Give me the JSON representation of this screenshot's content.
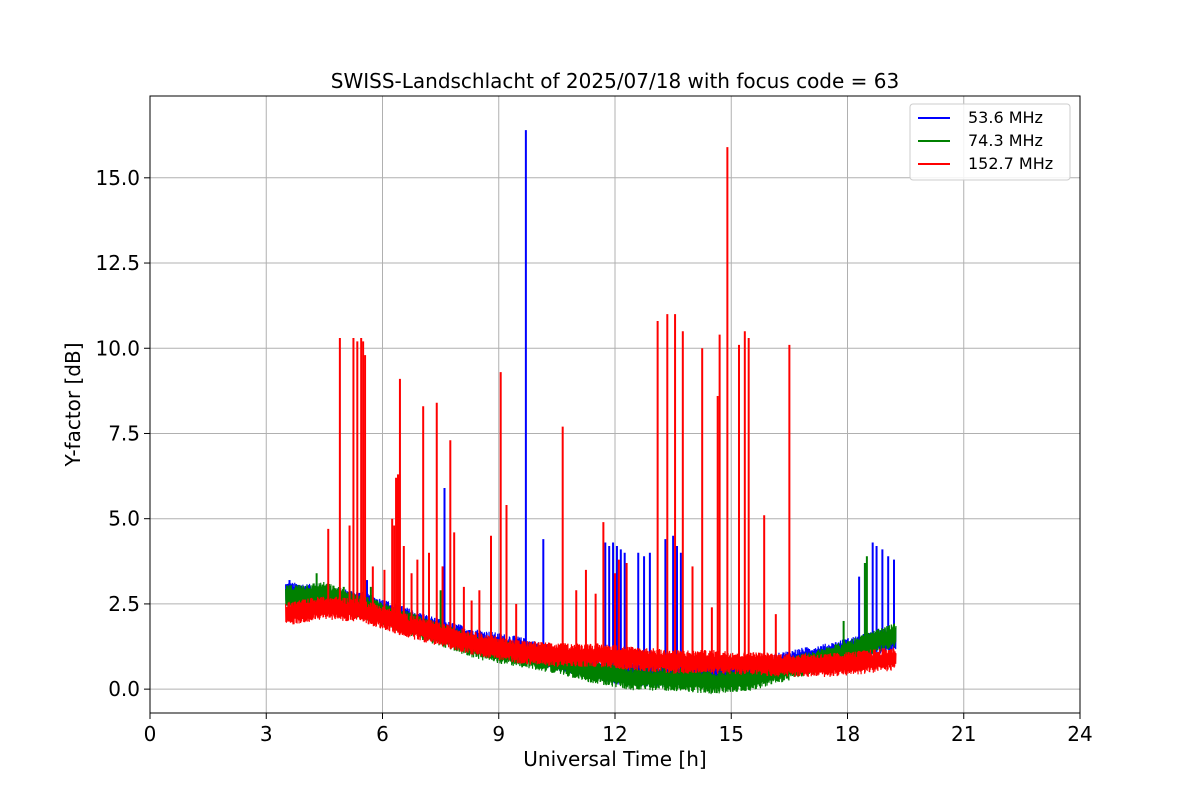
{
  "chart_data": {
    "type": "line",
    "title": "SWISS-Landschlacht of 2025/07/18 with focus code = 63",
    "xlabel": "Universal Time [h]",
    "ylabel": "Y-factor [dB]",
    "xlim": [
      0,
      24
    ],
    "ylim": [
      -0.7,
      17.4
    ],
    "x_ticks": [
      0,
      3,
      6,
      9,
      12,
      15,
      18,
      21,
      24
    ],
    "x_tick_labels": [
      "0",
      "3",
      "6",
      "9",
      "12",
      "15",
      "18",
      "21",
      "24"
    ],
    "y_ticks": [
      0.0,
      2.5,
      5.0,
      7.5,
      10.0,
      12.5,
      15.0
    ],
    "y_tick_labels": [
      "0.0",
      "2.5",
      "5.0",
      "7.5",
      "10.0",
      "12.5",
      "15.0"
    ],
    "grid": true,
    "legend_position": "top-right",
    "series": [
      {
        "name": " 53.6 MHz",
        "color": "#0000ff",
        "baseline": [
          [
            3.5,
            2.8
          ],
          [
            4.5,
            2.7
          ],
          [
            5.5,
            2.5
          ],
          [
            6.5,
            2.1
          ],
          [
            7.5,
            1.7
          ],
          [
            8.5,
            1.4
          ],
          [
            9.5,
            1.2
          ],
          [
            10.5,
            0.9
          ],
          [
            11.5,
            0.6
          ],
          [
            12.5,
            0.4
          ],
          [
            13.5,
            0.4
          ],
          [
            14.5,
            0.5
          ],
          [
            15.5,
            0.5
          ],
          [
            16.5,
            0.8
          ],
          [
            17.5,
            1.0
          ],
          [
            18.5,
            1.3
          ],
          [
            19.25,
            1.5
          ]
        ],
        "spikes": [
          [
            3.6,
            3.2
          ],
          [
            4.3,
            3.1
          ],
          [
            5.6,
            3.2
          ],
          [
            7.6,
            5.9
          ],
          [
            9.7,
            16.4
          ],
          [
            10.15,
            4.4
          ],
          [
            11.75,
            4.3
          ],
          [
            11.85,
            4.2
          ],
          [
            11.95,
            4.3
          ],
          [
            12.05,
            4.2
          ],
          [
            12.15,
            4.1
          ],
          [
            12.25,
            4.0
          ],
          [
            12.6,
            4.0
          ],
          [
            12.75,
            3.9
          ],
          [
            12.9,
            4.0
          ],
          [
            13.3,
            4.4
          ],
          [
            13.5,
            4.5
          ],
          [
            13.6,
            4.2
          ],
          [
            13.7,
            4.0
          ],
          [
            18.3,
            3.3
          ],
          [
            18.45,
            3.7
          ],
          [
            18.65,
            4.3
          ],
          [
            18.75,
            4.2
          ],
          [
            18.9,
            4.1
          ],
          [
            19.05,
            3.9
          ],
          [
            19.2,
            3.8
          ]
        ]
      },
      {
        "name": " 74.3 MHz",
        "color": "#008000",
        "baseline": [
          [
            3.5,
            2.7
          ],
          [
            4.5,
            2.8
          ],
          [
            5.5,
            2.4
          ],
          [
            6.5,
            2.0
          ],
          [
            7.5,
            1.6
          ],
          [
            8.5,
            1.2
          ],
          [
            9.5,
            1.0
          ],
          [
            10.5,
            0.8
          ],
          [
            11.5,
            0.5
          ],
          [
            12.5,
            0.3
          ],
          [
            13.5,
            0.3
          ],
          [
            14.5,
            0.2
          ],
          [
            15.5,
            0.3
          ],
          [
            16.5,
            0.6
          ],
          [
            17.5,
            0.9
          ],
          [
            18.5,
            1.3
          ],
          [
            19.25,
            1.6
          ]
        ],
        "spikes": [
          [
            4.3,
            3.4
          ],
          [
            5.0,
            3.0
          ],
          [
            5.7,
            3.0
          ],
          [
            7.5,
            2.9
          ],
          [
            17.9,
            2.0
          ],
          [
            18.45,
            3.7
          ],
          [
            18.5,
            3.9
          ],
          [
            19.2,
            1.9
          ]
        ]
      },
      {
        "name": "152.7 MHz",
        "color": "#ff0000",
        "baseline": [
          [
            3.5,
            2.2
          ],
          [
            4.5,
            2.4
          ],
          [
            5.5,
            2.3
          ],
          [
            6.5,
            1.9
          ],
          [
            7.5,
            1.6
          ],
          [
            8.5,
            1.3
          ],
          [
            9.5,
            1.1
          ],
          [
            10.5,
            1.0
          ],
          [
            11.5,
            1.0
          ],
          [
            12.5,
            0.9
          ],
          [
            13.5,
            0.8
          ],
          [
            14.5,
            0.8
          ],
          [
            15.5,
            0.75
          ],
          [
            16.5,
            0.7
          ],
          [
            17.5,
            0.7
          ],
          [
            18.5,
            0.8
          ],
          [
            19.25,
            0.9
          ]
        ],
        "spikes": [
          [
            4.6,
            4.7
          ],
          [
            4.9,
            10.3
          ],
          [
            5.15,
            4.8
          ],
          [
            5.25,
            10.3
          ],
          [
            5.35,
            10.2
          ],
          [
            5.45,
            10.3
          ],
          [
            5.5,
            10.2
          ],
          [
            5.55,
            9.8
          ],
          [
            5.75,
            3.6
          ],
          [
            6.05,
            3.5
          ],
          [
            6.25,
            5.0
          ],
          [
            6.3,
            4.8
          ],
          [
            6.35,
            6.2
          ],
          [
            6.4,
            6.3
          ],
          [
            6.45,
            9.1
          ],
          [
            6.55,
            4.2
          ],
          [
            6.75,
            3.4
          ],
          [
            6.9,
            3.8
          ],
          [
            7.05,
            8.3
          ],
          [
            7.2,
            4.0
          ],
          [
            7.4,
            8.4
          ],
          [
            7.55,
            3.6
          ],
          [
            7.75,
            7.3
          ],
          [
            7.85,
            4.6
          ],
          [
            8.1,
            3.0
          ],
          [
            8.3,
            2.6
          ],
          [
            8.5,
            2.9
          ],
          [
            8.8,
            4.5
          ],
          [
            9.05,
            9.3
          ],
          [
            9.2,
            5.4
          ],
          [
            9.45,
            2.5
          ],
          [
            10.65,
            7.7
          ],
          [
            11.0,
            2.9
          ],
          [
            11.25,
            3.5
          ],
          [
            11.5,
            2.8
          ],
          [
            11.7,
            4.9
          ],
          [
            12.0,
            3.4
          ],
          [
            12.1,
            3.8
          ],
          [
            12.3,
            3.7
          ],
          [
            13.1,
            10.8
          ],
          [
            13.35,
            11.0
          ],
          [
            13.55,
            11.0
          ],
          [
            13.75,
            10.5
          ],
          [
            14.0,
            3.6
          ],
          [
            14.25,
            10.0
          ],
          [
            14.5,
            2.4
          ],
          [
            14.65,
            8.6
          ],
          [
            14.7,
            10.4
          ],
          [
            14.9,
            15.9
          ],
          [
            15.2,
            10.1
          ],
          [
            15.35,
            10.5
          ],
          [
            15.45,
            10.3
          ],
          [
            15.85,
            5.1
          ],
          [
            16.15,
            2.2
          ],
          [
            16.5,
            10.1
          ]
        ]
      }
    ]
  }
}
